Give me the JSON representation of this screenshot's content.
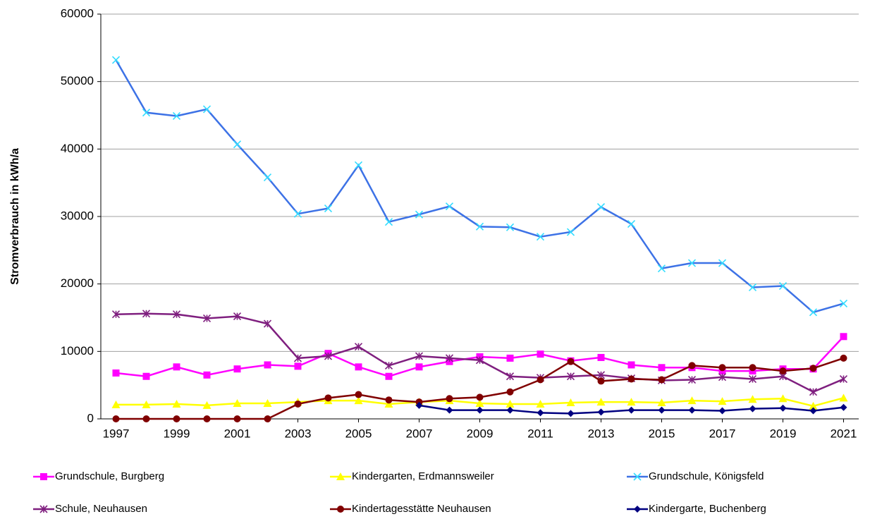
{
  "chart_data": {
    "type": "line",
    "y_label": "Stromverbrauch in kWh/a",
    "x": [
      1997,
      1998,
      1999,
      2000,
      2001,
      2002,
      2003,
      2004,
      2005,
      2006,
      2007,
      2008,
      2009,
      2010,
      2011,
      2012,
      2013,
      2014,
      2015,
      2016,
      2017,
      2018,
      2019,
      2020,
      2021
    ],
    "xlim": [
      1996.5,
      2021.5
    ],
    "xticks": [
      1997,
      1999,
      2001,
      2003,
      2005,
      2007,
      2009,
      2011,
      2013,
      2015,
      2017,
      2019,
      2021
    ],
    "ylim": [
      0,
      60000
    ],
    "yticks": [
      0,
      10000,
      20000,
      30000,
      40000,
      50000,
      60000
    ],
    "grid": true,
    "legend": "bottom",
    "series": [
      {
        "name": "Grundschule, Burgberg",
        "color": "#ff00ff",
        "marker": "square",
        "values": [
          6800,
          6300,
          7700,
          6500,
          7400,
          8000,
          7800,
          9700,
          7700,
          6300,
          7700,
          8500,
          9200,
          9000,
          9600,
          8600,
          9100,
          8000,
          7600,
          7600,
          7100,
          7100,
          7400,
          7400,
          12200
        ]
      },
      {
        "name": "Kindergarten, Erdmannsweiler",
        "color": "#ffff00",
        "marker": "triangle",
        "values": [
          2100,
          2100,
          2200,
          2000,
          2300,
          2300,
          2500,
          2700,
          2700,
          2200,
          2500,
          2700,
          2300,
          2200,
          2200,
          2400,
          2500,
          2500,
          2400,
          2700,
          2600,
          2900,
          3000,
          1900,
          3100
        ]
      },
      {
        "name": "Grundschule, Königsfeld",
        "color": "#3d72e6",
        "marker": "x",
        "values": [
          53200,
          45400,
          44900,
          45900,
          40700,
          35800,
          30400,
          31200,
          37600,
          29200,
          30300,
          31500,
          28500,
          28400,
          27000,
          27700,
          31400,
          28900,
          22300,
          23100,
          23100,
          19500,
          19700,
          15800,
          17100
        ]
      },
      {
        "name": "Schule, Neuhausen",
        "color": "#7f1f7f",
        "marker": "star",
        "values": [
          15500,
          15600,
          15500,
          14900,
          15200,
          14100,
          9000,
          9300,
          10700,
          7900,
          9300,
          9000,
          8700,
          6300,
          6100,
          6300,
          6500,
          6000,
          5700,
          5800,
          6200,
          5900,
          6300,
          4000,
          5900
        ]
      },
      {
        "name": "Kindertagesstätte Neuhausen",
        "color": "#800000",
        "marker": "circle",
        "values": [
          0,
          0,
          0,
          0,
          0,
          0,
          2200,
          3100,
          3600,
          2800,
          2500,
          3000,
          3200,
          4000,
          5800,
          8500,
          5600,
          5900,
          5800,
          7900,
          7600,
          7600,
          7100,
          7500,
          9000
        ]
      },
      {
        "name": "Kindergarte, Buchenberg",
        "color": "#000080",
        "marker": "diamond",
        "values": [
          null,
          null,
          null,
          null,
          null,
          null,
          null,
          null,
          null,
          null,
          2000,
          1300,
          1300,
          1300,
          900,
          800,
          1000,
          1300,
          1300,
          1300,
          1200,
          1500,
          1600,
          1200,
          1700
        ]
      }
    ]
  }
}
